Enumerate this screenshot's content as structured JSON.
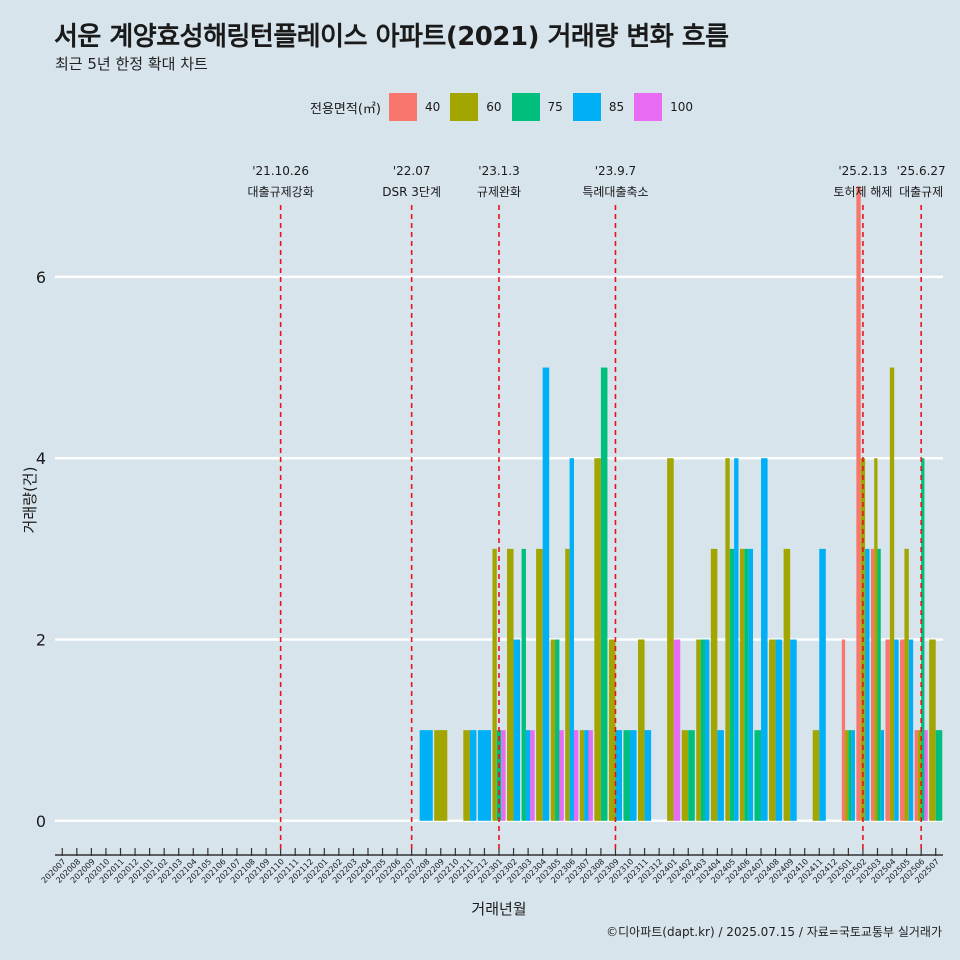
{
  "title": "서운 계양효성해링턴플레이스 아파트(2021) 거래량 변화 흐름",
  "subtitle": "최근 5년 한정 확대 차트",
  "caption": "©디아파트(dapt.kr) / 2025.07.15 / 자료=국토교통부 실거래가",
  "legend": {
    "title": "전용면적(㎡)",
    "items": [
      {
        "label": "40",
        "color": "#f8766d"
      },
      {
        "label": "60",
        "color": "#a3a500"
      },
      {
        "label": "75",
        "color": "#00bf7d"
      },
      {
        "label": "85",
        "color": "#00b0f6"
      },
      {
        "label": "100",
        "color": "#e76bf3"
      }
    ]
  },
  "chart_data": {
    "type": "bar",
    "xlabel": "거래년월",
    "ylabel": "거래량(건)",
    "ylim": [
      -0.3,
      7.4
    ],
    "yticks": [
      0,
      2,
      4,
      6
    ],
    "grid": true,
    "legend_position": "top",
    "categories": [
      "202007",
      "202008",
      "202009",
      "202010",
      "202011",
      "202012",
      "202101",
      "202102",
      "202103",
      "202104",
      "202105",
      "202106",
      "202107",
      "202108",
      "202109",
      "202110",
      "202111",
      "202112",
      "202201",
      "202202",
      "202203",
      "202204",
      "202205",
      "202206",
      "202207",
      "202208",
      "202209",
      "202210",
      "202211",
      "202212",
      "202301",
      "202302",
      "202303",
      "202304",
      "202305",
      "202306",
      "202307",
      "202308",
      "202309",
      "202310",
      "202311",
      "202312",
      "202401",
      "202402",
      "202403",
      "202404",
      "202405",
      "202406",
      "202407",
      "202408",
      "202409",
      "202410",
      "202411",
      "202412",
      "202501",
      "202502",
      "202503",
      "202504",
      "202505",
      "202506",
      "202507"
    ],
    "series": [
      {
        "name": "40",
        "values": [
          0,
          0,
          0,
          0,
          0,
          0,
          0,
          0,
          0,
          0,
          0,
          0,
          0,
          0,
          0,
          0,
          0,
          0,
          0,
          0,
          0,
          0,
          0,
          0,
          0,
          0,
          0,
          0,
          0,
          0,
          0,
          0,
          0,
          0,
          0,
          0,
          0,
          0,
          0,
          0,
          0,
          0,
          0,
          0,
          0,
          0,
          0,
          0,
          0,
          0,
          0,
          0,
          0,
          0,
          2,
          7,
          3,
          2,
          2,
          1,
          0
        ]
      },
      {
        "name": "60",
        "values": [
          0,
          0,
          0,
          0,
          0,
          0,
          0,
          0,
          0,
          0,
          0,
          0,
          0,
          0,
          0,
          0,
          0,
          0,
          0,
          0,
          0,
          0,
          0,
          0,
          0,
          0,
          1,
          0,
          1,
          0,
          3,
          3,
          0,
          3,
          2,
          3,
          1,
          4,
          2,
          0,
          2,
          0,
          4,
          1,
          2,
          3,
          4,
          3,
          0,
          2,
          3,
          0,
          1,
          0,
          1,
          4,
          4,
          5,
          3,
          1,
          2
        ]
      },
      {
        "name": "75",
        "values": [
          0,
          0,
          0,
          0,
          0,
          0,
          0,
          0,
          0,
          0,
          0,
          0,
          0,
          0,
          0,
          0,
          0,
          0,
          0,
          0,
          0,
          0,
          0,
          0,
          0,
          0,
          0,
          0,
          0,
          0,
          1,
          0,
          3,
          0,
          2,
          0,
          0,
          5,
          0,
          1,
          0,
          0,
          0,
          1,
          2,
          0,
          3,
          3,
          1,
          0,
          0,
          0,
          0,
          0,
          1,
          0,
          3,
          0,
          0,
          4,
          1
        ]
      },
      {
        "name": "85",
        "values": [
          0,
          0,
          0,
          0,
          0,
          0,
          0,
          0,
          0,
          0,
          0,
          0,
          0,
          0,
          0,
          0,
          0,
          0,
          0,
          0,
          0,
          0,
          0,
          0,
          0,
          1,
          0,
          0,
          1,
          1,
          0,
          2,
          1,
          5,
          0,
          4,
          1,
          0,
          1,
          1,
          1,
          0,
          0,
          0,
          2,
          1,
          4,
          3,
          4,
          2,
          2,
          0,
          3,
          0,
          1,
          3,
          1,
          2,
          2,
          0,
          0
        ]
      },
      {
        "name": "100",
        "values": [
          0,
          0,
          0,
          0,
          0,
          0,
          0,
          0,
          0,
          0,
          0,
          0,
          0,
          0,
          0,
          0,
          0,
          0,
          0,
          0,
          0,
          0,
          0,
          0,
          0,
          0,
          0,
          0,
          0,
          0,
          1,
          0,
          1,
          0,
          1,
          1,
          1,
          0,
          0,
          0,
          0,
          0,
          2,
          0,
          0,
          0,
          0,
          0,
          0,
          0,
          0,
          0,
          0,
          0,
          0,
          0,
          0,
          0,
          0,
          1,
          0
        ]
      }
    ],
    "events": [
      {
        "category": "202110",
        "date": "'21.10.26",
        "label": "대출규제강화"
      },
      {
        "category": "202207",
        "date": "'22.07",
        "label": "DSR 3단계"
      },
      {
        "category": "202301",
        "date": "'23.1.3",
        "label": "규제완화"
      },
      {
        "category": "202309",
        "date": "'23.9.7",
        "label": "특례대출축소"
      },
      {
        "category": "202502",
        "date": "'25.2.13",
        "label": "토허제 해제"
      },
      {
        "category": "202506",
        "date": "'25.6.27",
        "label": "대출규제"
      }
    ]
  }
}
